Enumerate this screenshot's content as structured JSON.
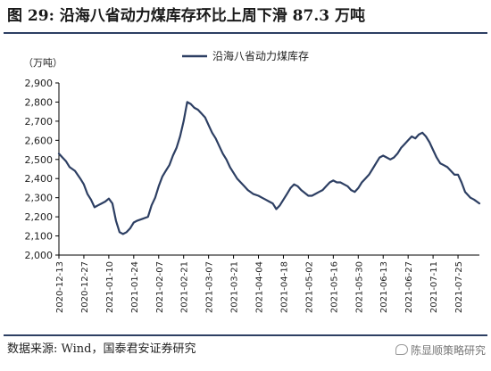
{
  "figure": {
    "title": "图 29:  沿海八省动力煤库存环比上周下滑 87.3 万吨",
    "source": "数据来源:  Wind，国泰君安证券研究",
    "watermark": "陈显顺策略研究"
  },
  "colors": {
    "line": "#2d3f63",
    "axis": "#000000",
    "rule": "#2d3f63"
  },
  "chart_data": {
    "type": "line",
    "title": "",
    "xlabel": "",
    "ylabel": "（万吨）",
    "ylim": [
      2000,
      2900
    ],
    "yticks": [
      2000,
      2100,
      2200,
      2300,
      2400,
      2500,
      2600,
      2700,
      2800,
      2900
    ],
    "ytick_labels": [
      "2,000",
      "2,100",
      "2,200",
      "2,300",
      "2,400",
      "2,500",
      "2,600",
      "2,700",
      "2,800",
      "2,900"
    ],
    "xticks": [
      "2020-12-13",
      "2020-12-27",
      "2021-01-10",
      "2021-01-24",
      "2021-02-07",
      "2021-02-21",
      "2021-03-07",
      "2021-03-21",
      "2021-04-04",
      "2021-04-18",
      "2021-05-02",
      "2021-05-16",
      "2021-05-30",
      "2021-06-13",
      "2021-06-27",
      "2021-07-11",
      "2021-07-25"
    ],
    "xlim": [
      "2020-12-13",
      "2021-08-06"
    ],
    "grid": false,
    "legend_position": "top-center",
    "series": [
      {
        "name": "沿海八省动力煤库存",
        "x": [
          "2020-12-13",
          "2020-12-15",
          "2020-12-17",
          "2020-12-19",
          "2020-12-22",
          "2020-12-25",
          "2020-12-27",
          "2020-12-29",
          "2020-12-31",
          "2021-01-02",
          "2021-01-04",
          "2021-01-06",
          "2021-01-08",
          "2021-01-10",
          "2021-01-12",
          "2021-01-14",
          "2021-01-16",
          "2021-01-18",
          "2021-01-20",
          "2021-01-22",
          "2021-01-24",
          "2021-01-26",
          "2021-01-29",
          "2021-02-01",
          "2021-02-03",
          "2021-02-05",
          "2021-02-07",
          "2021-02-09",
          "2021-02-11",
          "2021-02-13",
          "2021-02-15",
          "2021-02-17",
          "2021-02-19",
          "2021-02-21",
          "2021-02-23",
          "2021-02-25",
          "2021-02-27",
          "2021-03-01",
          "2021-03-03",
          "2021-03-05",
          "2021-03-07",
          "2021-03-09",
          "2021-03-11",
          "2021-03-13",
          "2021-03-15",
          "2021-03-17",
          "2021-03-19",
          "2021-03-21",
          "2021-03-23",
          "2021-03-25",
          "2021-03-27",
          "2021-03-29",
          "2021-04-01",
          "2021-04-04",
          "2021-04-06",
          "2021-04-08",
          "2021-04-10",
          "2021-04-12",
          "2021-04-14",
          "2021-04-16",
          "2021-04-18",
          "2021-04-20",
          "2021-04-22",
          "2021-04-24",
          "2021-04-26",
          "2021-04-28",
          "2021-05-02",
          "2021-05-04",
          "2021-05-06",
          "2021-05-08",
          "2021-05-10",
          "2021-05-12",
          "2021-05-14",
          "2021-05-16",
          "2021-05-18",
          "2021-05-20",
          "2021-05-22",
          "2021-05-24",
          "2021-05-26",
          "2021-05-28",
          "2021-05-30",
          "2021-06-01",
          "2021-06-03",
          "2021-06-05",
          "2021-06-07",
          "2021-06-09",
          "2021-06-11",
          "2021-06-13",
          "2021-06-15",
          "2021-06-17",
          "2021-06-19",
          "2021-06-21",
          "2021-06-23",
          "2021-06-25",
          "2021-06-27",
          "2021-06-29",
          "2021-07-01",
          "2021-07-03",
          "2021-07-05",
          "2021-07-07",
          "2021-07-09",
          "2021-07-11",
          "2021-07-13",
          "2021-07-15",
          "2021-07-17",
          "2021-07-19",
          "2021-07-21",
          "2021-07-23",
          "2021-07-25",
          "2021-07-27",
          "2021-07-29",
          "2021-08-01",
          "2021-08-03",
          "2021-08-06"
        ],
        "values": [
          2530,
          2510,
          2490,
          2460,
          2440,
          2400,
          2370,
          2320,
          2290,
          2250,
          2260,
          2270,
          2280,
          2295,
          2270,
          2180,
          2120,
          2110,
          2120,
          2140,
          2170,
          2180,
          2190,
          2200,
          2260,
          2300,
          2360,
          2410,
          2440,
          2470,
          2520,
          2560,
          2620,
          2700,
          2800,
          2790,
          2770,
          2760,
          2740,
          2720,
          2680,
          2640,
          2610,
          2570,
          2530,
          2500,
          2460,
          2430,
          2400,
          2380,
          2360,
          2340,
          2320,
          2310,
          2300,
          2290,
          2280,
          2270,
          2240,
          2260,
          2290,
          2320,
          2350,
          2370,
          2360,
          2340,
          2310,
          2310,
          2320,
          2330,
          2340,
          2360,
          2380,
          2390,
          2380,
          2380,
          2370,
          2360,
          2340,
          2330,
          2350,
          2380,
          2400,
          2420,
          2450,
          2480,
          2510,
          2520,
          2510,
          2500,
          2510,
          2530,
          2560,
          2580,
          2600,
          2620,
          2610,
          2630,
          2640,
          2620,
          2590,
          2550,
          2510,
          2480,
          2470,
          2460,
          2440,
          2420,
          2420,
          2380,
          2330,
          2300,
          2290,
          2270
        ]
      }
    ]
  }
}
